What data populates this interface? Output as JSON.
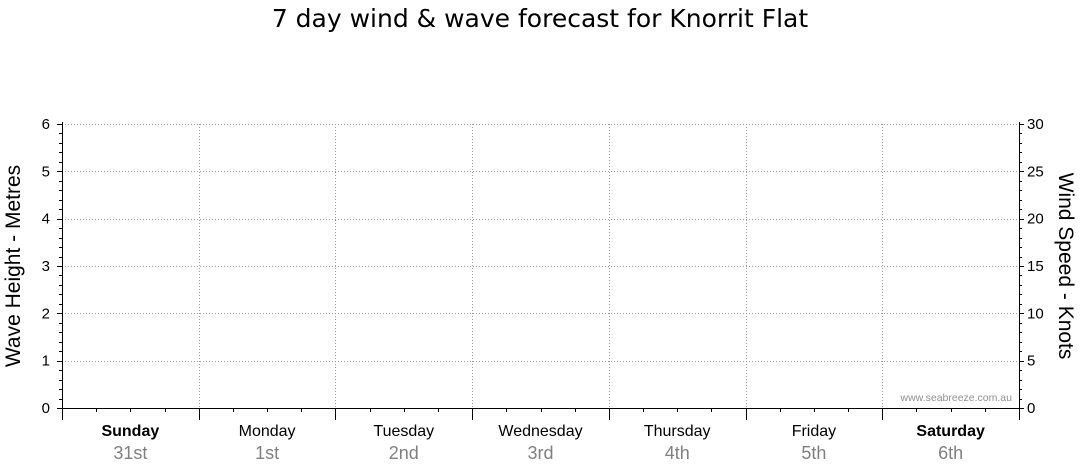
{
  "chart_data": {
    "type": "line",
    "title": "7 day wind & wave forecast for Knorrit Flat",
    "y_left": {
      "label": "Wave Height - Metres",
      "ylim": [
        0,
        6
      ],
      "ticks": [
        "0",
        "1",
        "2",
        "3",
        "4",
        "5",
        "6"
      ]
    },
    "y_right": {
      "label": "Wind Speed - Knots",
      "ylim": [
        0,
        30
      ],
      "ticks": [
        "0",
        "5",
        "10",
        "15",
        "20",
        "25",
        "30"
      ]
    },
    "days": [
      {
        "day": "Sunday",
        "date": "31st",
        "bold": true
      },
      {
        "day": "Monday",
        "date": "1st",
        "bold": false
      },
      {
        "day": "Tuesday",
        "date": "2nd",
        "bold": false
      },
      {
        "day": "Wednesday",
        "date": "3rd",
        "bold": false
      },
      {
        "day": "Thursday",
        "date": "4th",
        "bold": false
      },
      {
        "day": "Friday",
        "date": "5th",
        "bold": false
      },
      {
        "day": "Saturday",
        "date": "6th",
        "bold": true
      }
    ],
    "series": [],
    "grid": true,
    "watermark": "www.seabreeze.com.au"
  }
}
